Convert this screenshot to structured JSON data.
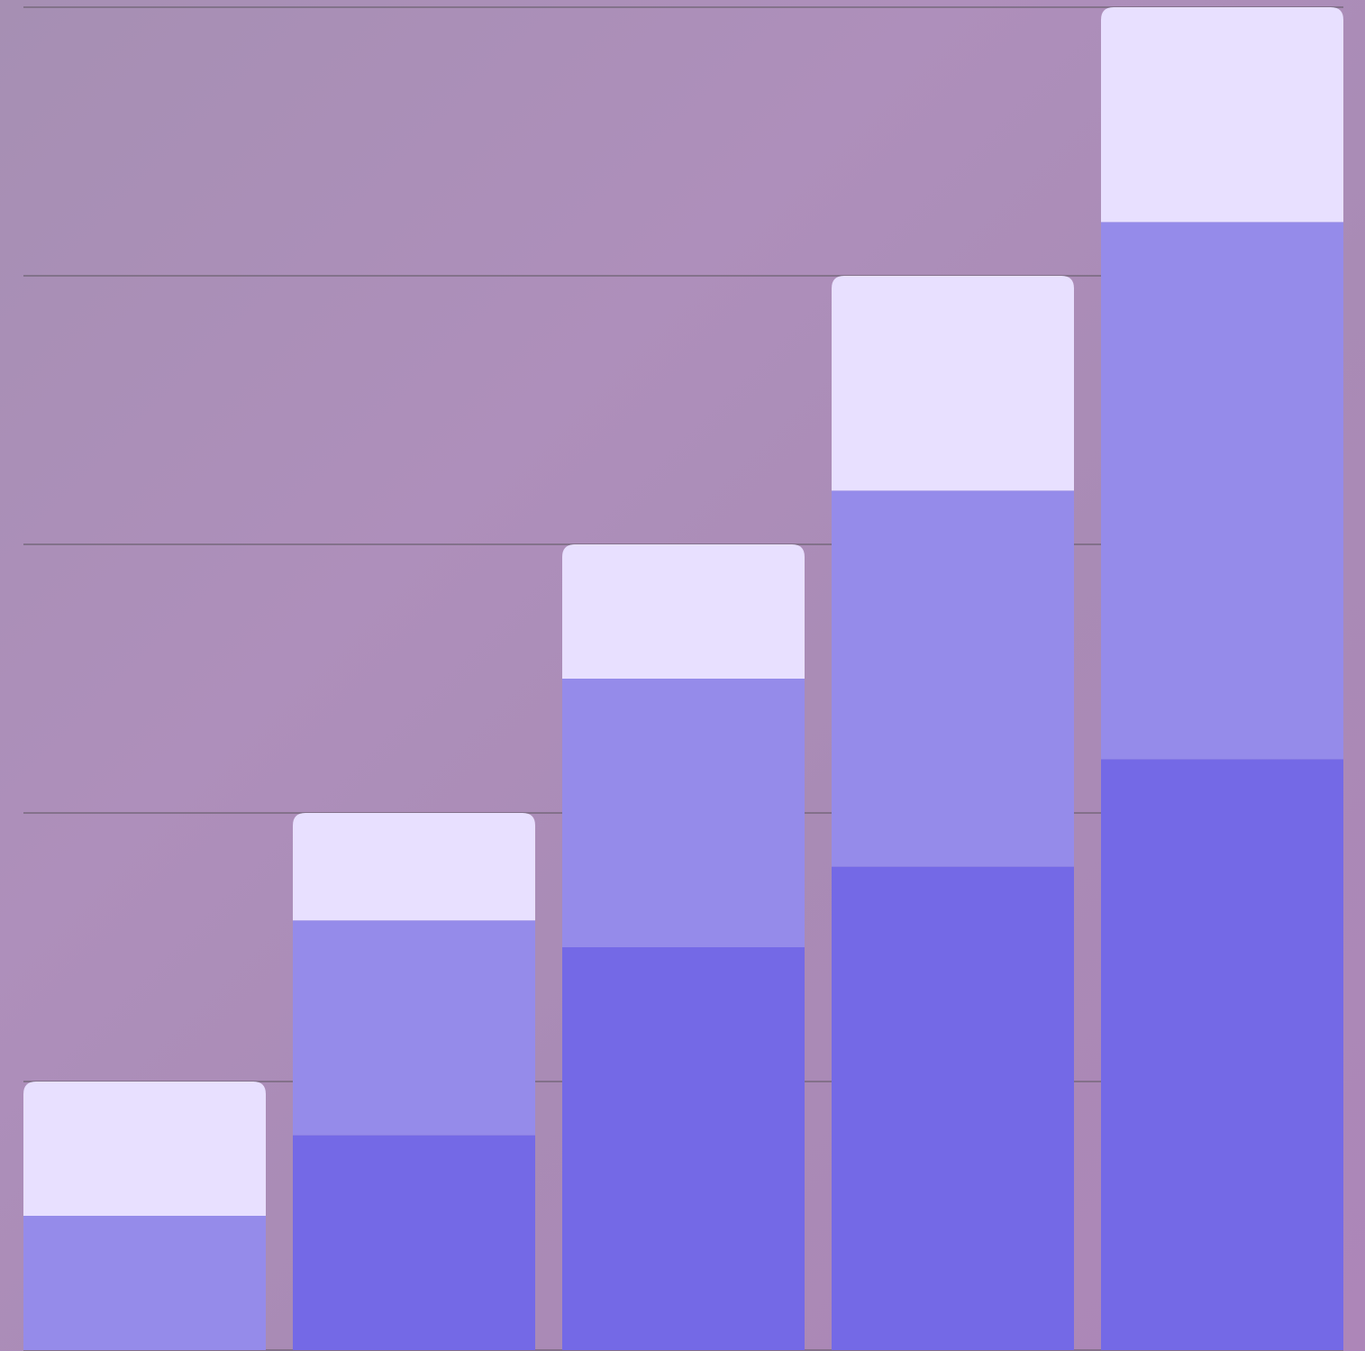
{
  "chart_data": {
    "type": "stacked_bar",
    "categories": [
      null,
      null,
      null,
      null,
      null
    ],
    "series": [
      {
        "color": "#7469e6",
        "values": [
          0,
          0.8,
          1.5,
          1.8,
          2.2
        ]
      },
      {
        "color": "#958bea",
        "values": [
          0.5,
          0.8,
          1.0,
          1.4,
          2.0
        ]
      },
      {
        "color": "#e8e0ff",
        "values": [
          0.5,
          0.4,
          0.5,
          0.8,
          0.8
        ]
      }
    ],
    "ylim": [
      0,
      5
    ],
    "yticks": [
      0,
      1,
      2,
      3,
      4,
      5
    ],
    "grid": true
  }
}
